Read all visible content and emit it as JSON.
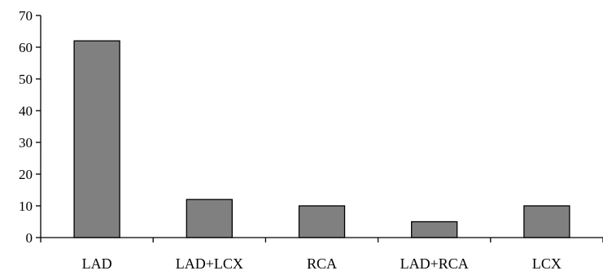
{
  "chart_data": {
    "type": "bar",
    "title": "",
    "xlabel": "",
    "ylabel": "",
    "categories": [
      "LAD",
      "LAD+LCX",
      "RCA",
      "LAD+RCA",
      "LCX"
    ],
    "values": [
      62,
      12,
      10,
      5,
      10
    ],
    "ylim": [
      0,
      70
    ],
    "yticks": [
      0,
      10,
      20,
      30,
      40,
      50,
      60,
      70
    ],
    "grid": false,
    "legend": "none",
    "colors": {
      "bar_fill": "#808080",
      "bar_stroke": "#000000",
      "axis": "#000000"
    }
  }
}
